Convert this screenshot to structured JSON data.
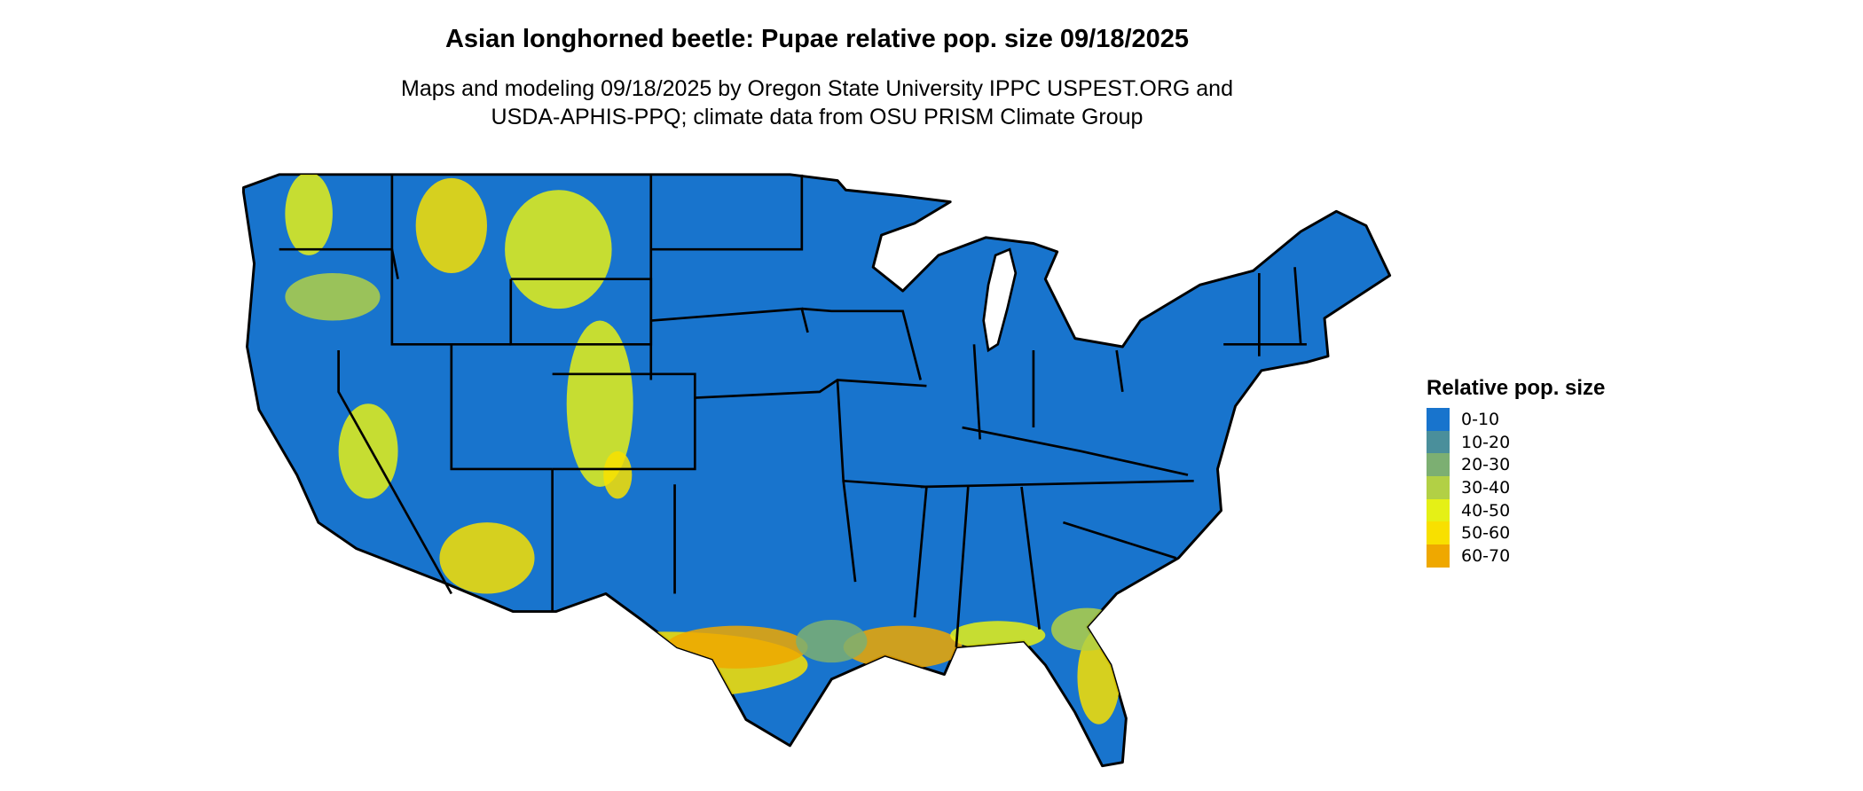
{
  "title": "Asian longhorned beetle: Pupae relative pop. size 09/18/2025",
  "subtitle_line1": "Maps and modeling 09/18/2025 by Oregon State University IPPC USPEST.ORG and",
  "subtitle_line2": "USDA-APHIS-PPQ; climate data from OSU PRISM Climate Group",
  "legend": {
    "title": "Relative pop. size",
    "items": [
      {
        "label": "0-10",
        "color": "#1874CD"
      },
      {
        "label": "10-20",
        "color": "#4A8F9B"
      },
      {
        "label": "20-30",
        "color": "#7CAF72"
      },
      {
        "label": "30-40",
        "color": "#B2D045"
      },
      {
        "label": "40-50",
        "color": "#E5F016"
      },
      {
        "label": "50-60",
        "color": "#F8E000"
      },
      {
        "label": "60-70",
        "color": "#EFA800"
      }
    ]
  },
  "map": {
    "region": "Contiguous United States",
    "base_color": "#1874CD",
    "border_color": "#000000"
  }
}
